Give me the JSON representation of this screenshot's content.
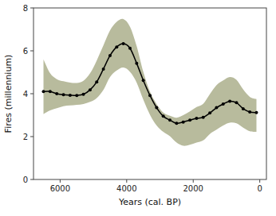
{
  "chart_data": {
    "type": "line",
    "xlabel": "Years (cal. BP)",
    "ylabel": "Fires (millennium)",
    "xlim": [
      6800,
      -200
    ],
    "ylim": [
      0,
      8
    ],
    "xticks": [
      6000,
      4000,
      2000,
      0
    ],
    "yticks": [
      0,
      2,
      4,
      6,
      8
    ],
    "grid": false,
    "x": [
      6500,
      6300,
      6100,
      5900,
      5700,
      5500,
      5300,
      5100,
      4900,
      4700,
      4500,
      4300,
      4100,
      3900,
      3700,
      3500,
      3300,
      3100,
      2900,
      2700,
      2500,
      2300,
      2100,
      1900,
      1700,
      1500,
      1300,
      1100,
      900,
      700,
      500,
      300,
      100
    ],
    "series": [
      {
        "type": "band",
        "color": "#b8bb9d",
        "upper": [
          5.6,
          4.95,
          4.68,
          4.58,
          4.52,
          4.5,
          4.6,
          4.95,
          5.55,
          6.25,
          6.95,
          7.35,
          7.48,
          7.12,
          6.22,
          5.02,
          4.1,
          3.52,
          3.12,
          2.97,
          2.88,
          3.0,
          3.18,
          3.38,
          3.53,
          3.98,
          4.4,
          4.62,
          4.78,
          4.65,
          4.2,
          3.85,
          3.75
        ],
        "lower": [
          3.05,
          3.22,
          3.32,
          3.42,
          3.45,
          3.48,
          3.52,
          3.62,
          3.8,
          4.18,
          4.78,
          5.08,
          5.22,
          5.02,
          4.52,
          3.72,
          3.02,
          2.52,
          2.22,
          2.02,
          1.72,
          1.57,
          1.62,
          1.72,
          1.82,
          2.12,
          2.32,
          2.52,
          2.65,
          2.62,
          2.42,
          2.25,
          2.22
        ]
      },
      {
        "type": "line",
        "color": "#000000",
        "marker": "circle",
        "values": [
          4.1,
          4.1,
          4.0,
          3.95,
          3.93,
          3.92,
          3.97,
          4.18,
          4.55,
          5.15,
          5.78,
          6.18,
          6.33,
          6.12,
          5.42,
          4.62,
          3.92,
          3.35,
          2.95,
          2.77,
          2.62,
          2.68,
          2.77,
          2.85,
          2.9,
          3.1,
          3.35,
          3.52,
          3.65,
          3.58,
          3.3,
          3.15,
          3.12
        ]
      }
    ]
  }
}
